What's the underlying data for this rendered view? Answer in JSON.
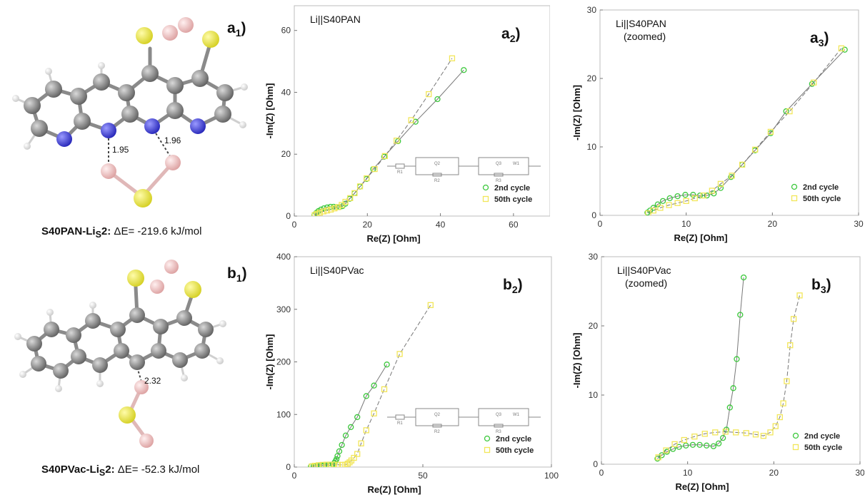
{
  "panel_a1": {
    "label_letter": "a",
    "label_sub": "1",
    "label_paren": ")",
    "bond1": "1.95",
    "bond2": "1.96",
    "caption_name": "S40PAN-Li",
    "caption_sub": "S",
    "caption_suffix": "2:",
    "caption_energy": " ΔE= -219.6 kJ/mol"
  },
  "panel_b1": {
    "label_letter": "b",
    "label_sub": "1",
    "label_paren": ")",
    "bond1": "2.32",
    "caption_name": "S40PVac-Li",
    "caption_sub": "S",
    "caption_suffix": "2:",
    "caption_energy": " ΔE= -52.3 kJ/mol"
  },
  "colors": {
    "carbon": "#7a7a7a",
    "nitrogen": "#3a3ad8",
    "sulfur": "#e6e23a",
    "lithium": "#f0c3c3",
    "hydrogen": "#f2f2f2",
    "series_2nd": "#3cc83c",
    "series_50th": "#f2e65a",
    "fit_line": "#777777"
  },
  "chart_data": [
    {
      "id": "a2",
      "type": "scatter",
      "label_letter": "a",
      "label_sub": "2",
      "label_paren": ")",
      "title": "Li||S40PAN",
      "title2": "",
      "xlabel": "Re(Z) [Ohm]",
      "ylabel": "-Im(Z) [Ohm]",
      "xlim": [
        0,
        70
      ],
      "ylim": [
        0,
        68
      ],
      "xticks": [
        0,
        20,
        40,
        60
      ],
      "yticks": [
        0,
        20,
        40,
        60
      ],
      "legend": "bottom-right",
      "inset": "circuit",
      "circuit_labels": [
        "R1",
        "Q2",
        "R2",
        "Q3",
        "W1",
        "R3"
      ],
      "series": [
        {
          "name": "2nd cycle",
          "marker": "circle",
          "x": [
            5.5,
            6.0,
            6.6,
            7.3,
            8.1,
            9.0,
            9.9,
            10.8,
            11.6,
            12.4,
            13.2,
            14.0,
            15.2,
            16.5,
            18.0,
            19.8,
            21.6,
            24.6,
            28.4,
            33.2,
            39.2,
            46.4
          ],
          "y": [
            0.4,
            1.0,
            1.6,
            2.1,
            2.5,
            2.8,
            3.0,
            3.0,
            2.9,
            2.9,
            3.2,
            4.0,
            5.6,
            7.4,
            9.5,
            12.0,
            15.2,
            19.2,
            24.2,
            30.5,
            37.8,
            47.2
          ]
        },
        {
          "name": "50th cycle",
          "marker": "square",
          "x": [
            5.6,
            6.2,
            7.0,
            8.0,
            9.0,
            10.0,
            11.0,
            12.0,
            13.0,
            14.0,
            15.3,
            16.5,
            18.0,
            19.8,
            22.0,
            24.8,
            28.0,
            32.0,
            36.8,
            43.2
          ],
          "y": [
            0.3,
            0.7,
            1.1,
            1.5,
            1.8,
            2.1,
            2.5,
            2.9,
            3.6,
            4.6,
            5.8,
            7.4,
            9.6,
            12.2,
            15.2,
            19.4,
            24.4,
            31.0,
            39.4,
            51.0
          ]
        }
      ]
    },
    {
      "id": "a3",
      "type": "scatter",
      "label_letter": "a",
      "label_sub": "3",
      "label_paren": ")",
      "title": "Li||S40PAN",
      "title2": "(zoomed)",
      "xlabel": "Re(Z) [Ohm]",
      "ylabel": "-Im(Z) [Ohm]",
      "xlim": [
        0,
        30
      ],
      "ylim": [
        0,
        30
      ],
      "xticks": [
        0,
        10,
        20,
        30
      ],
      "yticks": [
        0,
        10,
        20,
        30
      ],
      "legend": "bottom-right",
      "inset": "none",
      "series": [
        {
          "name": "2nd cycle",
          "marker": "circle",
          "x": [
            5.5,
            5.8,
            6.2,
            6.7,
            7.3,
            8.1,
            9.0,
            9.9,
            10.8,
            11.6,
            12.4,
            13.2,
            14.0,
            15.2,
            16.5,
            18.0,
            19.8,
            21.6,
            24.6,
            28.4
          ],
          "y": [
            0.4,
            0.7,
            1.1,
            1.6,
            2.1,
            2.5,
            2.8,
            3.0,
            3.0,
            2.9,
            2.9,
            3.2,
            4.0,
            5.6,
            7.4,
            9.5,
            12.0,
            15.2,
            19.2,
            24.2
          ]
        },
        {
          "name": "50th cycle",
          "marker": "square",
          "x": [
            5.6,
            6.2,
            7.0,
            8.0,
            9.0,
            10.0,
            11.0,
            12.0,
            13.0,
            14.0,
            15.3,
            16.5,
            18.0,
            19.8,
            22.0,
            24.8,
            28.0
          ],
          "y": [
            0.3,
            0.7,
            1.1,
            1.5,
            1.8,
            2.1,
            2.5,
            2.9,
            3.6,
            4.6,
            5.8,
            7.4,
            9.6,
            12.2,
            15.2,
            19.4,
            24.4
          ]
        }
      ]
    },
    {
      "id": "b2",
      "type": "scatter",
      "label_letter": "b",
      "label_sub": "2",
      "label_paren": ")",
      "title": "Li||S40PVac",
      "title2": "",
      "xlabel": "Re(Z) [Ohm]",
      "ylabel": "-Im(Z) [Ohm]",
      "xlim": [
        0,
        100
      ],
      "ylim": [
        0,
        400
      ],
      "xticks": [
        0,
        50,
        100
      ],
      "yticks": [
        0,
        100,
        200,
        300,
        400
      ],
      "legend": "bottom-right",
      "inset": "circuit",
      "circuit_labels": [
        "R1",
        "Q2",
        "R2",
        "Q3",
        "W1",
        "R3"
      ],
      "series": [
        {
          "name": "2nd cycle",
          "marker": "circle",
          "x": [
            6.5,
            7.5,
            8.5,
            9.5,
            10.5,
            11.5,
            12.5,
            13.5,
            14.3,
            15.0,
            15.6,
            16.0,
            16.4,
            16.8,
            17.5,
            18.5,
            20.0,
            22.0,
            24.5,
            28.0,
            31.0,
            36.0
          ],
          "y": [
            1.5,
            2.2,
            2.6,
            2.8,
            2.9,
            3.0,
            3.0,
            3.1,
            3.6,
            5.0,
            8.0,
            11.0,
            15.0,
            21.0,
            30.0,
            42.0,
            60.0,
            76.0,
            95.0,
            135.0,
            155.0,
            195.0
          ]
        },
        {
          "name": "50th cycle",
          "marker": "square",
          "x": [
            6.8,
            8.0,
            9.5,
            11.0,
            12.5,
            14.0,
            15.5,
            17.0,
            18.5,
            19.8,
            20.8,
            21.5,
            22.2,
            23.2,
            24.5,
            26.0,
            28.0,
            31.0,
            35.0,
            41.0,
            53.0
          ],
          "y": [
            1.2,
            2.5,
            3.5,
            4.2,
            4.6,
            4.7,
            4.6,
            4.4,
            4.2,
            4.5,
            6.5,
            9.0,
            12.5,
            17.5,
            25.0,
            45.0,
            70.0,
            102.0,
            148.0,
            215.0,
            308.0
          ]
        }
      ]
    },
    {
      "id": "b3",
      "type": "scatter",
      "label_letter": "b",
      "label_sub": "3",
      "label_paren": ")",
      "title": "Li||S40PVac",
      "title2": "(zoomed)",
      "xlabel": "Re(Z) [Ohm]",
      "ylabel": "-Im(Z) [Ohm]",
      "xlim": [
        0,
        30
      ],
      "ylim": [
        0,
        30
      ],
      "xticks": [
        0,
        10,
        20,
        30
      ],
      "yticks": [
        0,
        10,
        20,
        30
      ],
      "legend": "bottom-right",
      "inset": "none",
      "series": [
        {
          "name": "2nd cycle",
          "marker": "circle",
          "x": [
            6.5,
            7.0,
            7.6,
            8.3,
            9.0,
            9.8,
            10.6,
            11.4,
            12.2,
            13.0,
            13.6,
            14.1,
            14.5,
            14.9,
            15.3,
            15.7,
            16.1,
            16.5
          ],
          "y": [
            0.8,
            1.3,
            1.8,
            2.2,
            2.5,
            2.7,
            2.8,
            2.8,
            2.7,
            2.6,
            3.0,
            3.8,
            5.0,
            8.2,
            11.0,
            15.2,
            21.6,
            27.0
          ]
        },
        {
          "name": "50th cycle",
          "marker": "square",
          "x": [
            6.6,
            7.5,
            8.5,
            9.6,
            10.8,
            12.0,
            13.2,
            14.4,
            15.6,
            16.8,
            17.9,
            18.8,
            19.6,
            20.2,
            20.7,
            21.1,
            21.5,
            21.9,
            22.3,
            23.0
          ],
          "y": [
            1.0,
            2.0,
            2.9,
            3.5,
            4.0,
            4.4,
            4.6,
            4.7,
            4.6,
            4.5,
            4.3,
            4.1,
            4.6,
            5.5,
            6.8,
            8.8,
            12.0,
            17.2,
            21.0,
            24.4
          ]
        }
      ]
    }
  ]
}
